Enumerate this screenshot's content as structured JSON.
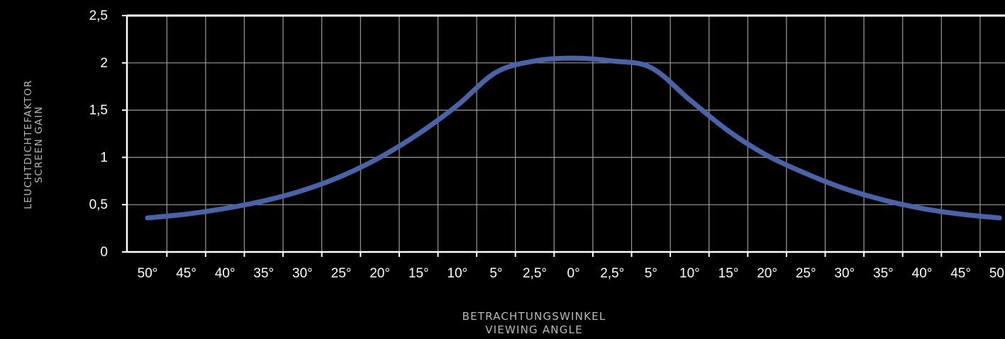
{
  "chart_data": {
    "type": "line",
    "title": "",
    "ylabel_lines": [
      "LEUCHTDICHTEFAKTOR",
      "SCREEN GAIN"
    ],
    "xlabel_lines": [
      "BETRACHTUNGSWINKEL",
      "VIEWING ANGLE"
    ],
    "x_ticks": [
      "50°",
      "45°",
      "40°",
      "35°",
      "30°",
      "25°",
      "20°",
      "15°",
      "10°",
      "5°",
      "2,5°",
      "0°",
      "2,5°",
      "5°",
      "10°",
      "15°",
      "20°",
      "25°",
      "30°",
      "35°",
      "40°",
      "45°",
      "50°"
    ],
    "y_ticks": [
      "0",
      "0,5",
      "1",
      "1,5",
      "2",
      "2,5"
    ],
    "ylim": [
      0,
      2.5
    ],
    "grid": true,
    "series": [
      {
        "values": [
          0.36,
          0.4,
          0.46,
          0.54,
          0.65,
          0.8,
          1.0,
          1.25,
          1.55,
          1.9,
          2.02,
          2.05,
          2.02,
          1.95,
          1.61,
          1.28,
          1.02,
          0.83,
          0.67,
          0.55,
          0.46,
          0.4,
          0.36
        ],
        "color": "#4a62a6"
      }
    ],
    "colors": {
      "background": "#000000",
      "grid": "#9a9a9a",
      "axis": "#ffffff",
      "tick_text": "#ffffff",
      "label_text": "#b8b8b8"
    }
  }
}
